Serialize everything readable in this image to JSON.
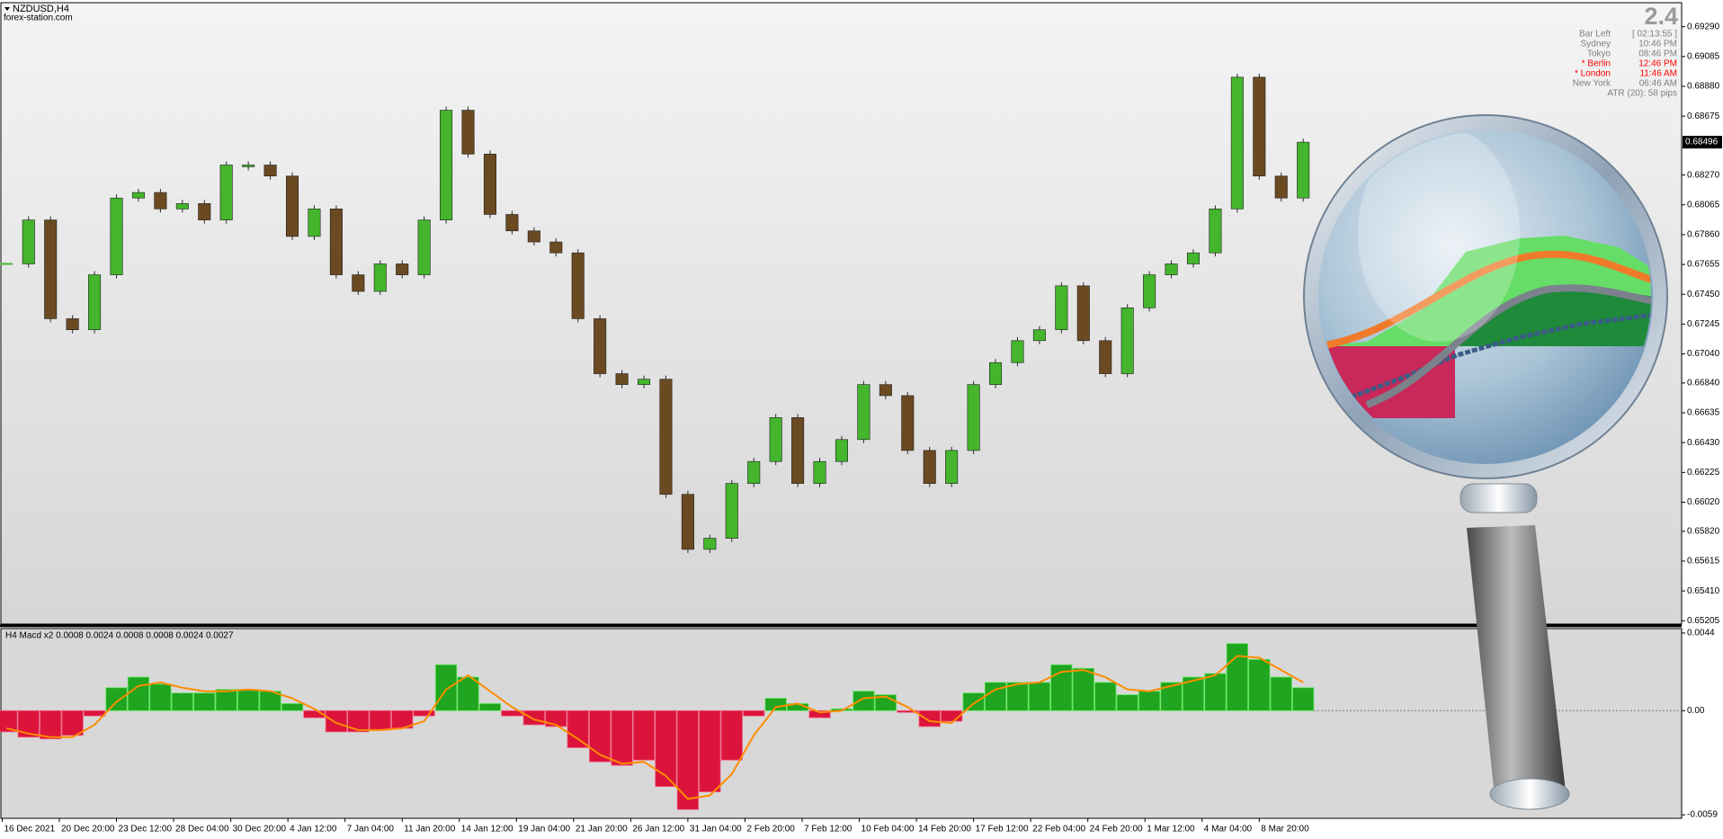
{
  "window": {
    "symbol": "NZDUSD,H4",
    "source": "forex-station.com"
  },
  "info_panel": {
    "value": "2.4",
    "rows": [
      {
        "label": "Bar Left",
        "value": "[ 02:13:55 ]",
        "color": "#808080"
      },
      {
        "label": "Sydney",
        "value": "10:46 PM",
        "color": "#808080"
      },
      {
        "label": "Tokyo",
        "value": "08:46 PM",
        "color": "#808080"
      },
      {
        "label": "* Berlin",
        "value": "12:46 PM",
        "color": "#ff0000"
      },
      {
        "label": "* London",
        "value": "11:46 AM",
        "color": "#ff0000"
      },
      {
        "label": "New York",
        "value": "06:46 AM",
        "color": "#808080"
      }
    ],
    "atr": "ATR (20): 58 pips"
  },
  "chart_data": [
    {
      "type": "candlestick",
      "values": [
        0.67659,
        0.67961,
        0.67282,
        0.67206,
        0.67584,
        0.68112,
        0.6815,
        0.68037,
        0.68074,
        0.67961,
        0.68339,
        0.68339,
        0.68263,
        0.67848,
        0.68037,
        0.67584,
        0.6747,
        0.67659,
        0.67584,
        0.67961,
        0.68716,
        0.68414,
        0.67999,
        0.67886,
        0.6781,
        0.67735,
        0.67282,
        0.66904,
        0.66829,
        0.66866,
        0.66074,
        0.65696,
        0.65772,
        0.66149,
        0.663,
        0.66602,
        0.66149,
        0.663,
        0.66451,
        0.66829,
        0.66753,
        0.66376,
        0.66149,
        0.66376,
        0.66829,
        0.6698,
        0.67131,
        0.67206,
        0.67508,
        0.67131,
        0.66904,
        0.67357,
        0.67584,
        0.67659,
        0.67735,
        0.68037,
        0.68943,
        0.68263,
        0.68112,
        0.68496
      ],
      "up_color": "#44b52c",
      "down_color": "#6b4a22",
      "ylim": [
        0.65182,
        0.69449
      ],
      "yticks": [
        {
          "value": 0.6929,
          "label": "0.69290"
        },
        {
          "value": 0.69085,
          "label": "0.69085"
        },
        {
          "value": 0.6888,
          "label": "0.68880"
        },
        {
          "value": 0.68675,
          "label": "0.68675"
        },
        {
          "value": 0.6827,
          "label": "0.68270"
        },
        {
          "value": 0.68065,
          "label": "0.68065"
        },
        {
          "value": 0.6786,
          "label": "0.67860"
        },
        {
          "value": 0.67655,
          "label": "0.67655"
        },
        {
          "value": 0.6745,
          "label": "0.67450"
        },
        {
          "value": 0.67245,
          "label": "0.67245"
        },
        {
          "value": 0.6704,
          "label": "0.67040"
        },
        {
          "value": 0.6684,
          "label": "0.66840"
        },
        {
          "value": 0.66635,
          "label": "0.66635"
        },
        {
          "value": 0.6643,
          "label": "0.66430"
        },
        {
          "value": 0.66225,
          "label": "0.66225"
        },
        {
          "value": 0.6602,
          "label": "0.66020"
        },
        {
          "value": 0.6582,
          "label": "0.65820"
        },
        {
          "value": 0.65615,
          "label": "0.65615"
        },
        {
          "value": 0.6541,
          "label": "0.65410"
        },
        {
          "value": 0.65205,
          "label": "0.65205"
        }
      ],
      "last_price": {
        "value": 0.68496,
        "label": "0.68496"
      }
    },
    {
      "type": "macd",
      "title": "H4 Macd x2 0.0008 0.0024 0.0008 0.0008 0.0024 0.0027",
      "values": [
        -0.0012,
        -0.0015,
        -0.0016,
        -0.0014,
        -0.0003,
        0.0013,
        0.0019,
        0.0015,
        0.001,
        0.001,
        0.0012,
        0.0012,
        0.0011,
        0.0004,
        -0.0004,
        -0.0012,
        -0.0012,
        -0.0011,
        -0.001,
        -0.0003,
        0.0026,
        0.0019,
        0.0004,
        -0.0003,
        -0.0008,
        -0.0009,
        -0.0021,
        -0.0029,
        -0.0031,
        -0.0028,
        -0.0043,
        -0.0056,
        -0.0046,
        -0.0028,
        -0.0003,
        0.0007,
        0.0004,
        -0.0004,
        0.0001,
        0.0011,
        0.0009,
        -0.0001,
        -0.0009,
        -0.0006,
        0.001,
        0.0016,
        0.0016,
        0.0016,
        0.0026,
        0.0024,
        0.0016,
        0.0009,
        0.0011,
        0.0016,
        0.0019,
        0.0021,
        0.0038,
        0.0029,
        0.0019,
        0.0013
      ],
      "signal": [
        -0.001,
        -0.0013,
        -0.0015,
        -0.0015,
        -0.0008,
        0.0005,
        0.0014,
        0.0016,
        0.0013,
        0.0011,
        0.0011,
        0.0012,
        0.0011,
        0.0007,
        0.0001,
        -0.0007,
        -0.0011,
        -0.0011,
        -0.001,
        -0.0006,
        0.0012,
        0.002,
        0.0011,
        0.0002,
        -0.0005,
        -0.0008,
        -0.0016,
        -0.0025,
        -0.003,
        -0.0029,
        -0.0037,
        -0.005,
        -0.0048,
        -0.0036,
        -0.0014,
        0.0002,
        0.0004,
        -0.0001,
        0,
        0.0007,
        0.0008,
        0.0002,
        -0.0006,
        -0.0007,
        0.0004,
        0.0012,
        0.0015,
        0.0016,
        0.0022,
        0.0023,
        0.0019,
        0.0012,
        0.0011,
        0.0014,
        0.0017,
        0.002,
        0.0031,
        0.003,
        0.0023,
        0.0016
      ],
      "positive_color": "#1fa51f",
      "negative_color": "#dc143c",
      "signal_color": "#ff8c00",
      "ylim": [
        -0.0061,
        0.00465
      ],
      "yticks": [
        0.0044,
        {
          "value": 0,
          "label": "0.00"
        },
        -0.0059
      ],
      "zero_line": true,
      "time_labels": [
        "16 Dec 2021",
        "20 Dec 20:00",
        "23 Dec 12:00",
        "28 Dec 04:00",
        "30 Dec 20:00",
        "4 Jan 12:00",
        "7 Jan 04:00",
        "11 Jan 20:00",
        "14 Jan 12:00",
        "19 Jan 04:00",
        "21 Jan 20:00",
        "26 Jan 12:00",
        "31 Jan 04:00",
        "2 Feb 20:00",
        "7 Feb 12:00",
        "10 Feb 04:00",
        "14 Feb 20:00",
        "17 Feb 12:00",
        "22 Feb 04:00",
        "24 Feb 20:00",
        "1 Mar 12:00",
        "4 Mar 04:00",
        "8 Mar 20:00"
      ]
    }
  ]
}
